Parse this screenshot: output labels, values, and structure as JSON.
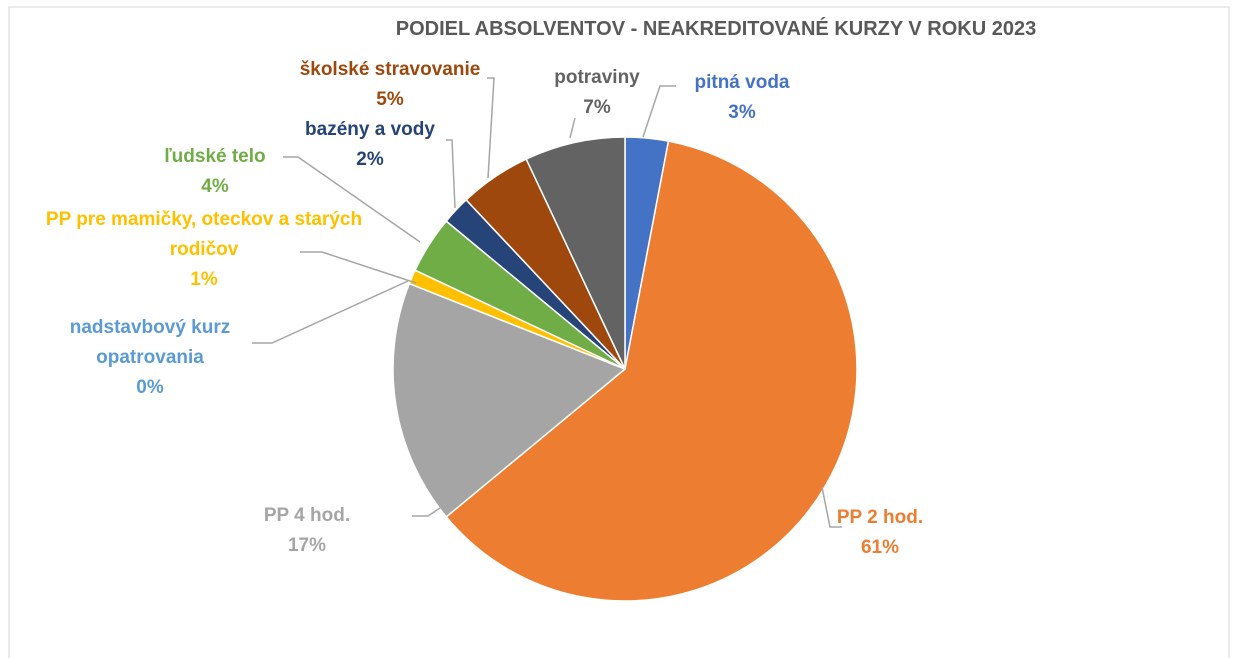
{
  "chart_data": {
    "type": "pie",
    "title": "PODIEL ABSOLVENTOV - NEAKREDITOVANÉ KURZY V ROKU 2023",
    "categories": [
      "pitná voda",
      "PP 2 hod.",
      "PP 4 hod.",
      "nadstavbový kurz opatrovania",
      "PP pre mamičky, oteckov a starých rodičov",
      "ľudské telo",
      "bazény a vody",
      "školské stravovanie",
      "potraviny"
    ],
    "values": [
      3,
      61,
      17,
      0,
      1,
      4,
      2,
      5,
      7
    ],
    "value_labels": [
      "3%",
      "61%",
      "17%",
      "0%",
      "1%",
      "4%",
      "2%",
      "5%",
      "7%"
    ],
    "colors": [
      "#4472c4",
      "#ed7d31",
      "#a5a5a5",
      "#5b9bd5",
      "#ffc000",
      "#70ad47",
      "#264478",
      "#9e480e",
      "#636363"
    ]
  }
}
